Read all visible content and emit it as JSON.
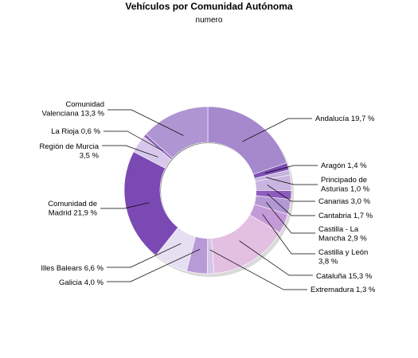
{
  "chart_data": {
    "type": "pie",
    "title": "Vehículos por Comunidad Autónoma",
    "subtitle": "numero",
    "slices": [
      {
        "label": "Andalucía",
        "value": 19.7,
        "value_text": "19,7 %",
        "color": "#a689cc"
      },
      {
        "label": "Aragón",
        "value": 1.4,
        "value_text": "1,4 %",
        "color": "#7c4fb5"
      },
      {
        "label": "Principado de Asturias",
        "value": 1.0,
        "value_text": "1,0 %",
        "color": "#c6b3df"
      },
      {
        "label": "Canarias",
        "value": 3.0,
        "value_text": "3,0 %",
        "color": "#c9b5e0"
      },
      {
        "label": "Cantabria",
        "value": 1.7,
        "value_text": "1,7 %",
        "color": "#8e5cbf"
      },
      {
        "label": "Castilla - La Mancha",
        "value": 2.9,
        "value_text": "2,9 %",
        "color": "#b399d3"
      },
      {
        "label": "Castilla y León",
        "value": 3.8,
        "value_text": "3,8 %",
        "color": "#c59ad8"
      },
      {
        "label": "Cataluña",
        "value": 15.3,
        "value_text": "15,3 %",
        "color": "#e3bfe2"
      },
      {
        "label": "Extremadura",
        "value": 1.3,
        "value_text": "1,3 %",
        "color": "#d5c6e8"
      },
      {
        "label": "Galicia",
        "value": 4.0,
        "value_text": "4,0 %",
        "color": "#b79ad6"
      },
      {
        "label": "Illes Balears",
        "value": 6.6,
        "value_text": "6,6 %",
        "color": "#e6def1"
      },
      {
        "label": "Comunidad de Madrid",
        "value": 21.9,
        "value_text": "21,9 %",
        "color": "#7b49b3"
      },
      {
        "label": "Región de Murcia",
        "value": 3.5,
        "value_text": "3,5 %",
        "color": "#d7c7ea"
      },
      {
        "label": "La Rioja",
        "value": 0.6,
        "value_text": "0,6 %",
        "color": "#8a62ba"
      },
      {
        "label": "Comunidad Valenciana",
        "value": 13.3,
        "value_text": "13,3 %",
        "color": "#b095d3"
      }
    ],
    "legend": "none"
  }
}
